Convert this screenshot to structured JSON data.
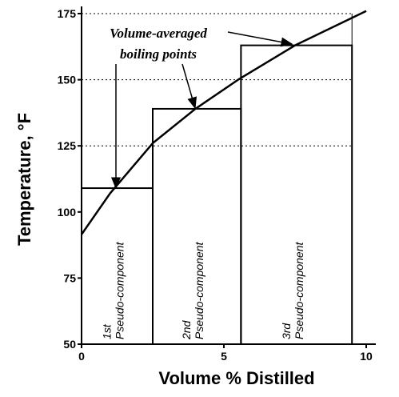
{
  "chart_data": {
    "type": "line",
    "x": [
      0,
      1,
      2.5,
      4,
      5.5,
      7.5,
      10
    ],
    "values": [
      91.5,
      107,
      126,
      139,
      150,
      163,
      176
    ],
    "xlabel": "Volume % Distilled",
    "ylabel": "Temperature, °F",
    "xlim": [
      0,
      10
    ],
    "xticks": [
      0,
      5,
      10
    ],
    "ylim": [
      50,
      175
    ],
    "yticks": [
      50,
      75,
      100,
      125,
      150,
      175
    ],
    "grid_values": [
      125,
      150,
      175
    ],
    "annotation": [
      "Volume-averaged",
      "boiling points"
    ],
    "components": [
      {
        "ordinal": "1st",
        "name": "Pseudo-component",
        "x_start": 0,
        "x_end": 2.5,
        "value": 109
      },
      {
        "ordinal": "2nd",
        "name": "Pseudo-component",
        "x_start": 2.5,
        "x_end": 5.6,
        "value": 139
      },
      {
        "ordinal": "3rd",
        "name": "Pseudo-component",
        "x_start": 5.6,
        "x_end": 9.5,
        "value": 163
      }
    ]
  }
}
